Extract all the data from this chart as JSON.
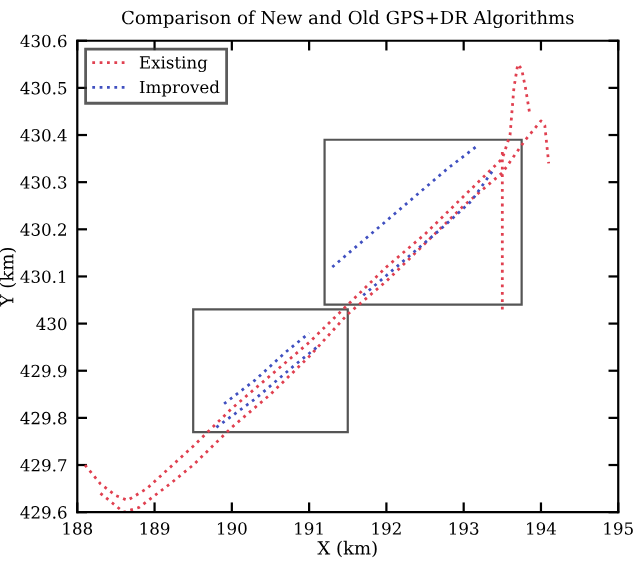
{
  "chart_data": {
    "type": "line",
    "title": "Comparison of New and Old GPS+DR Algorithms",
    "xlabel": "X (km)",
    "ylabel": "Y (km)",
    "xlim": [
      188,
      195
    ],
    "xticks": [
      188,
      189,
      190,
      191,
      192,
      193,
      194,
      195
    ],
    "ylim": [
      429.6,
      430.6
    ],
    "yticks": [
      429.6,
      429.7,
      429.8,
      429.9,
      430,
      430.1,
      430.2,
      430.3,
      430.4,
      430.5,
      430.6
    ],
    "legend": "top left",
    "line_style": "dotted",
    "grid": false,
    "series": [
      {
        "name": "Existing",
        "color": "#e04050",
        "x": [
          188.1,
          188.3,
          188.5,
          188.65,
          188.9,
          189.5,
          190,
          190.5,
          191,
          191.5,
          192,
          192.5,
          193,
          193.5,
          193.6,
          193.65,
          193.7,
          193.75,
          193.8,
          193.85,
          null,
          188.3,
          188.45,
          188.6,
          188.8,
          189.2,
          189.5,
          190,
          190.5,
          191,
          191.5,
          192,
          192.5,
          193,
          193.5,
          193.8,
          194,
          194.05,
          194.1,
          null,
          193.5,
          193.5,
          193.5
        ],
        "values": [
          429.7,
          429.66,
          429.635,
          429.625,
          429.65,
          429.74,
          429.82,
          429.89,
          429.96,
          430.04,
          430.12,
          430.19,
          430.27,
          430.35,
          430.4,
          430.5,
          430.55,
          430.54,
          430.5,
          430.45,
          null,
          429.64,
          429.62,
          429.6,
          429.61,
          429.66,
          429.7,
          429.78,
          429.85,
          429.93,
          430.02,
          430.09,
          430.17,
          430.25,
          430.32,
          430.39,
          430.43,
          430.42,
          430.34,
          null,
          430.03,
          430.2,
          430.37
        ]
      },
      {
        "name": "Improved",
        "color": "#4050c0",
        "x": [
          189.9,
          190.3,
          190.7,
          191,
          null,
          189.8,
          190.3,
          190.8,
          191.1,
          null,
          191.3,
          191.8,
          192.3,
          192.8,
          193.2,
          null,
          191.7,
          192.2,
          192.7,
          193.1,
          193.4
        ],
        "values": [
          429.83,
          429.88,
          429.94,
          429.98,
          null,
          429.78,
          429.84,
          429.91,
          429.95,
          null,
          430.12,
          430.19,
          430.26,
          430.33,
          430.38,
          null,
          430.06,
          430.13,
          430.2,
          430.26,
          430.33
        ]
      }
    ]
  }
}
